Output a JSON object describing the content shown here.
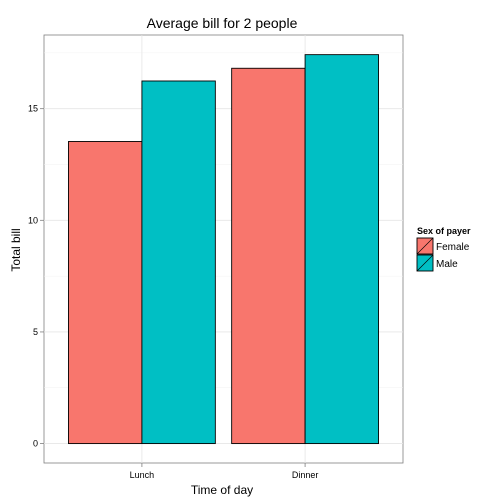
{
  "chart_data": {
    "type": "bar",
    "title": "Average bill for 2 people",
    "xlabel": "Time of day",
    "ylabel": "Total bill",
    "categories": [
      "Lunch",
      "Dinner"
    ],
    "series": [
      {
        "name": "Female",
        "values": [
          13.53,
          16.81
        ],
        "color": "#F8766D"
      },
      {
        "name": "Male",
        "values": [
          16.24,
          17.42
        ],
        "color": "#00BFC4"
      }
    ],
    "ylim": [
      -0.87,
      18.3
    ],
    "y_ticks": [
      0,
      5,
      10,
      15
    ],
    "grid": true,
    "legend": {
      "title": "Sex of payer",
      "position": "right"
    }
  }
}
